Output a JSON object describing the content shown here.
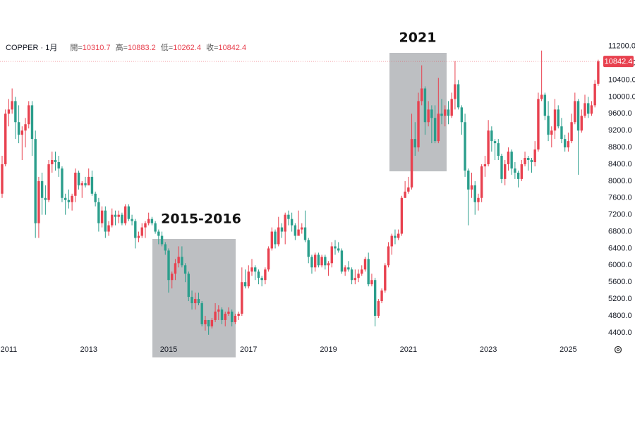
{
  "chart_data": {
    "type": "candlestick",
    "title": "COPPER · 1月",
    "ohlc_labels": [
      "開=",
      "高=",
      "低=",
      "收="
    ],
    "up_color": "#e8414f",
    "down_color": "#2b9e8c",
    "grid": false,
    "ylim": [
      4180,
      11380
    ],
    "yticks": [
      {
        "value": 4400,
        "label": "4400.0"
      },
      {
        "value": 4800,
        "label": "4800.0"
      },
      {
        "value": 5200,
        "label": "5200.0"
      },
      {
        "value": 5600,
        "label": "5600.0"
      },
      {
        "value": 6000,
        "label": "6000.0"
      },
      {
        "value": 6400,
        "label": "6400.0"
      },
      {
        "value": 6800,
        "label": "6800.0"
      },
      {
        "value": 7200,
        "label": "7200.0"
      },
      {
        "value": 7600,
        "label": "7600.0"
      },
      {
        "value": 8000,
        "label": "8000.0"
      },
      {
        "value": 8400,
        "label": "8400.0"
      },
      {
        "value": 8800,
        "label": "8800.0"
      },
      {
        "value": 9200,
        "label": "9200.0"
      },
      {
        "value": 9600,
        "label": "9600.0"
      },
      {
        "value": 10000,
        "label": "10000.0"
      },
      {
        "value": 10400,
        "label": "10400.0"
      },
      {
        "value": 10800,
        "label": "10800.0"
      },
      {
        "value": 11200,
        "label": "11200.0"
      }
    ],
    "annotations": [
      "2015-2016",
      "2021"
    ],
    "categories": [
      null,
      null,
      "2011",
      null,
      null,
      null,
      null,
      null,
      null,
      null,
      null,
      null,
      null,
      null,
      null,
      null,
      null,
      null,
      null,
      null,
      null,
      null,
      null,
      null,
      null,
      null,
      "2013",
      null,
      null,
      null,
      null,
      null,
      null,
      null,
      null,
      null,
      null,
      null,
      null,
      null,
      null,
      null,
      null,
      null,
      null,
      null,
      null,
      null,
      null,
      null,
      "2015",
      null,
      null,
      null,
      null,
      null,
      null,
      null,
      null,
      null,
      null,
      null,
      null,
      null,
      null,
      null,
      null,
      null,
      null,
      null,
      null,
      null,
      null,
      null,
      "2017",
      null,
      null,
      null,
      null,
      null,
      null,
      null,
      null,
      null,
      null,
      null,
      null,
      null,
      null,
      null,
      null,
      null,
      null,
      null,
      null,
      null,
      null,
      null,
      "2019",
      null,
      null,
      null,
      null,
      null,
      null,
      null,
      null,
      null,
      null,
      null,
      null,
      null,
      null,
      null,
      null,
      null,
      null,
      null,
      null,
      null,
      null,
      null,
      "2021",
      null,
      null,
      null,
      null,
      null,
      null,
      null,
      null,
      null,
      null,
      null,
      null,
      null,
      null,
      null,
      null,
      null,
      null,
      null,
      null,
      null,
      null,
      null,
      "2023",
      null,
      null,
      null,
      null,
      null,
      null,
      null,
      null,
      null,
      null,
      null,
      null,
      null,
      null,
      null,
      null,
      null,
      null,
      null,
      null,
      null,
      null,
      null,
      "2025",
      null,
      null,
      null,
      null,
      null,
      null,
      null,
      null,
      null
    ],
    "open": [
      7700,
      8400,
      9600,
      9700,
      9900,
      9400,
      9100,
      9200,
      9350,
      9800,
      9000,
      7000,
      8000,
      7600,
      7550,
      8400,
      8500,
      8450,
      8300,
      7600,
      7550,
      7500,
      7650,
      8200,
      7900,
      7950,
      7900,
      8100,
      7700,
      7500,
      7000,
      7300,
      6800,
      6950,
      7200,
      7150,
      7200,
      7000,
      7400,
      7100,
      7050,
      6650,
      6700,
      6900,
      7000,
      7100,
      7000,
      6800,
      6700,
      6500,
      6350,
      5650,
      5800,
      6050,
      6200,
      6000,
      5800,
      5250,
      5100,
      5200,
      5100,
      4600,
      4700,
      4550,
      4700,
      4900,
      4950,
      4700,
      4850,
      4900,
      4650,
      4800,
      4850,
      5600,
      5500,
      5850,
      5950,
      5850,
      5700,
      5650,
      5900,
      6400,
      6800,
      6500,
      6900,
      6800,
      7200,
      7100,
      6950,
      6700,
      6850,
      6900,
      6600,
      6200,
      5950,
      6250,
      6000,
      6200,
      6000,
      6050,
      6450,
      6400,
      6350,
      5850,
      5950,
      5900,
      5650,
      5700,
      5800,
      5900,
      6150,
      5550,
      5650,
      4800,
      5150,
      5400,
      6000,
      6450,
      6700,
      6650,
      6750,
      7600,
      7750,
      7850,
      9000,
      8800,
      9900,
      10200,
      9400,
      9700,
      9500,
      8950,
      9600,
      9550,
      9700,
      9550,
      9950,
      10300,
      9750,
      9400,
      8250,
      7800,
      7900,
      7500,
      7600,
      8350,
      8400,
      9200,
      8950,
      8900,
      8600,
      8050,
      8400,
      8700,
      8300,
      8200,
      8050,
      8400,
      8550,
      8500,
      8450,
      8750,
      9950,
      10050,
      9550,
      9100,
      9200,
      9700,
      9300,
      9000,
      8800,
      8950,
      9400,
      9900,
      9200,
      9550,
      9850,
      9600,
      9800,
      10310.7
    ],
    "high": [
      8600,
      9700,
      9950,
      10200,
      10000,
      9800,
      9300,
      9500,
      9900,
      9900,
      9200,
      8100,
      8200,
      7900,
      8500,
      8700,
      8700,
      8600,
      8350,
      7700,
      7800,
      7700,
      8300,
      8250,
      8000,
      8100,
      8300,
      8250,
      7750,
      7600,
      7400,
      7400,
      7050,
      7350,
      7300,
      7300,
      7250,
      7450,
      7450,
      7200,
      7100,
      6800,
      7000,
      7050,
      7250,
      7150,
      7050,
      6850,
      6800,
      6550,
      6400,
      5850,
      6150,
      6450,
      6450,
      6050,
      5850,
      5400,
      5350,
      5350,
      5150,
      4800,
      4700,
      4750,
      5100,
      5050,
      5000,
      4900,
      5000,
      4950,
      4850,
      4900,
      5950,
      5900,
      6000,
      6150,
      6000,
      5900,
      5750,
      5950,
      6450,
      6900,
      6850,
      7150,
      7000,
      7250,
      7300,
      7250,
      7000,
      7300,
      7000,
      7300,
      6650,
      6250,
      6300,
      6300,
      6250,
      6250,
      6100,
      6550,
      6600,
      6550,
      6400,
      6000,
      6100,
      5950,
      5900,
      5900,
      6000,
      6200,
      6300,
      5800,
      5700,
      5200,
      5450,
      6050,
      6550,
      6750,
      6850,
      6850,
      7650,
      8000,
      8100,
      9600,
      9400,
      10100,
      10750,
      10250,
      9900,
      9800,
      9800,
      10450,
      9950,
      9800,
      9900,
      10100,
      10850,
      10400,
      9800,
      9600,
      8300,
      8200,
      8000,
      7700,
      8400,
      8600,
      9450,
      9300,
      9000,
      9000,
      8650,
      8500,
      8800,
      8750,
      8450,
      8250,
      8500,
      8700,
      8600,
      8550,
      8950,
      10100,
      11100,
      10100,
      9900,
      9300,
      9950,
      9800,
      9500,
      9100,
      9150,
      9600,
      10100,
      9950,
      9700,
      10050,
      10000,
      9900,
      10400,
      10883.2
    ],
    "low": [
      7600,
      8350,
      9300,
      9600,
      9000,
      8900,
      8500,
      8800,
      9250,
      8600,
      6650,
      6650,
      7200,
      7200,
      7500,
      8200,
      8250,
      8100,
      7500,
      7200,
      7350,
      7300,
      7500,
      7800,
      7600,
      7850,
      7900,
      7650,
      7400,
      6800,
      6900,
      6650,
      6700,
      6900,
      6950,
      7000,
      6950,
      6950,
      7050,
      6950,
      6400,
      6550,
      6650,
      6650,
      6950,
      6950,
      6750,
      6500,
      6450,
      6250,
      5350,
      5450,
      5650,
      5950,
      5950,
      5600,
      5150,
      4950,
      4950,
      5050,
      4550,
      4450,
      4350,
      4500,
      4650,
      4700,
      4600,
      4550,
      4800,
      4550,
      4600,
      4700,
      4800,
      5450,
      5450,
      5750,
      5650,
      5550,
      5500,
      5550,
      5850,
      6350,
      6400,
      6450,
      6650,
      6500,
      6950,
      6800,
      6600,
      6700,
      6750,
      6550,
      6050,
      5800,
      5850,
      5950,
      5950,
      5900,
      5750,
      5950,
      6250,
      6300,
      5800,
      5750,
      5850,
      5550,
      5550,
      5600,
      5750,
      5850,
      5500,
      5500,
      4550,
      4750,
      5100,
      5350,
      5950,
      6250,
      6500,
      6600,
      6700,
      7600,
      7700,
      7800,
      8600,
      8700,
      9800,
      9100,
      9300,
      8900,
      8900,
      8900,
      9350,
      9300,
      9350,
      9500,
      9700,
      9700,
      9100,
      8100,
      6950,
      7600,
      7200,
      7300,
      7500,
      8100,
      8350,
      8700,
      8500,
      8500,
      7950,
      7900,
      8250,
      8150,
      8050,
      7850,
      8000,
      8350,
      8250,
      8200,
      8350,
      8700,
      9900,
      9450,
      8950,
      8800,
      9000,
      9250,
      8900,
      8700,
      8700,
      8900,
      9350,
      8150,
      9150,
      9500,
      9500,
      9550,
      9750,
      10262.4
    ],
    "close": [
      8400,
      9600,
      9700,
      9900,
      9400,
      9100,
      9200,
      9350,
      9800,
      9000,
      7000,
      8000,
      7600,
      7550,
      8400,
      8500,
      8450,
      8300,
      7600,
      7550,
      7500,
      7650,
      8200,
      7900,
      7950,
      7900,
      8100,
      7700,
      7500,
      7000,
      7300,
      6800,
      6950,
      7200,
      7150,
      7200,
      7000,
      7400,
      7100,
      7050,
      6650,
      6700,
      6900,
      7000,
      7100,
      7000,
      6800,
      6700,
      6500,
      6350,
      5650,
      5800,
      6050,
      6200,
      6000,
      5800,
      5250,
      5100,
      5200,
      5100,
      4600,
      4700,
      4550,
      4700,
      4900,
      4950,
      4700,
      4850,
      4900,
      4650,
      4800,
      4850,
      5600,
      5500,
      5850,
      5950,
      5850,
      5700,
      5650,
      5900,
      6400,
      6800,
      6500,
      6900,
      6800,
      7200,
      7100,
      6950,
      6700,
      6850,
      6900,
      6600,
      6200,
      5950,
      6250,
      6000,
      6200,
      6000,
      6050,
      6450,
      6400,
      6350,
      5850,
      5950,
      5900,
      5650,
      5700,
      5800,
      5900,
      6150,
      5550,
      5650,
      4800,
      5150,
      5400,
      6000,
      6450,
      6700,
      6650,
      6750,
      7600,
      7750,
      7850,
      9000,
      8800,
      9900,
      10200,
      9400,
      9700,
      9500,
      8950,
      9600,
      9550,
      9700,
      9550,
      9950,
      10300,
      9750,
      9400,
      8250,
      7800,
      7900,
      7500,
      7600,
      8350,
      8400,
      9200,
      8950,
      8900,
      8600,
      8050,
      8400,
      8700,
      8300,
      8200,
      8050,
      8400,
      8550,
      8500,
      8450,
      8750,
      9950,
      10050,
      9550,
      9100,
      9200,
      9700,
      9300,
      9000,
      8800,
      8950,
      9400,
      9900,
      9200,
      9550,
      9850,
      9600,
      9800,
      10310.7,
      10842.4
    ]
  }
}
